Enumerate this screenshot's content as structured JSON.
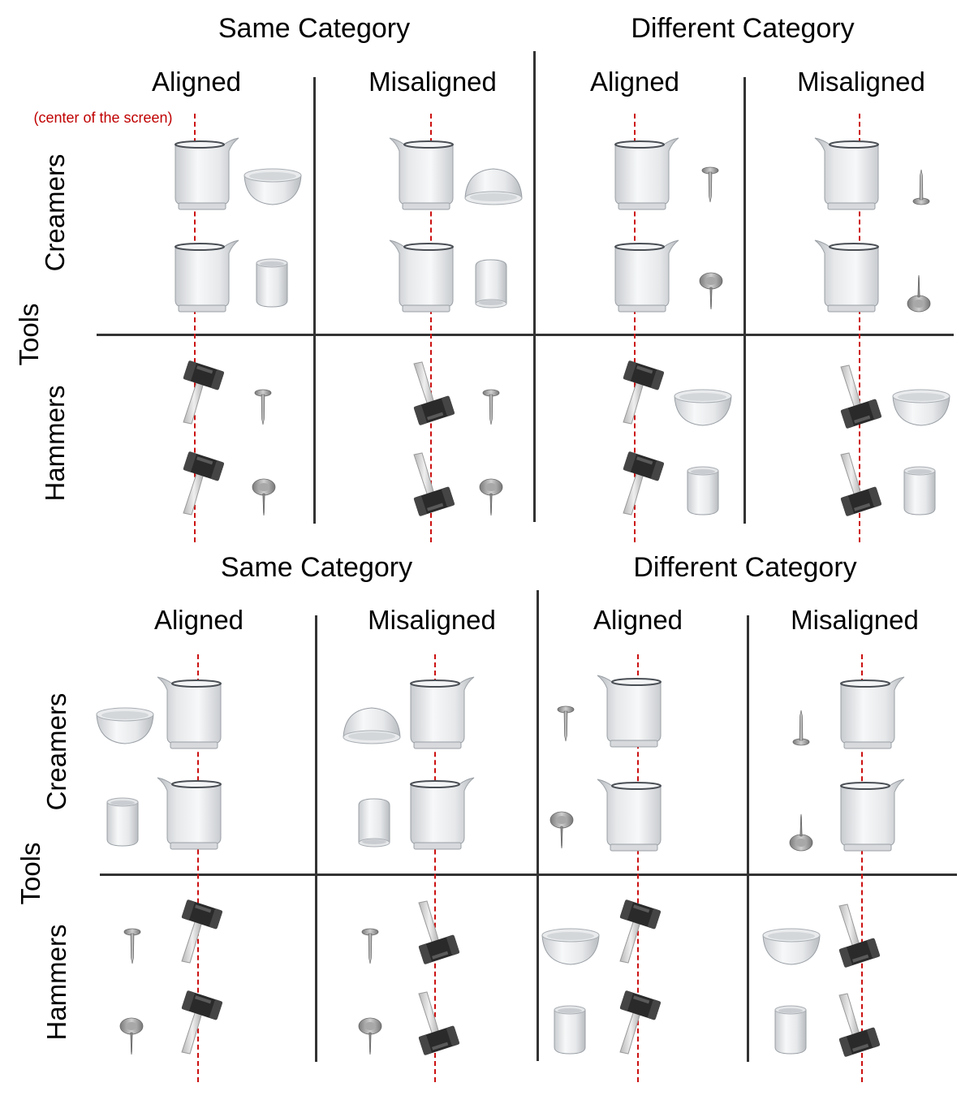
{
  "panels": [
    {
      "id": "top",
      "category_headers": [
        "Same Category",
        "Different Category"
      ],
      "column_headers": [
        "Aligned",
        "Misaligned",
        "Aligned",
        "Misaligned"
      ],
      "outer_row_label": "Tools",
      "row_labels": [
        "Creamers",
        "Hammers"
      ],
      "center_note": "(center of the screen)"
    },
    {
      "id": "bottom",
      "category_headers": [
        "Same Category",
        "Different Category"
      ],
      "column_headers": [
        "Aligned",
        "Misaligned",
        "Aligned",
        "Misaligned"
      ],
      "outer_row_label": "Tools",
      "row_labels": [
        "Creamers",
        "Hammers"
      ]
    }
  ],
  "colors": {
    "center_line": "#cc1111",
    "grid_lines": "#333333",
    "hammer_head": "#2a2a2a",
    "porcelain": "#e8eaec",
    "metal": "#9a9a9a"
  },
  "icons": [
    "creamer-icon",
    "bowl-icon",
    "cup-icon",
    "hammer-icon",
    "nail-icon",
    "thumbtack-icon"
  ]
}
